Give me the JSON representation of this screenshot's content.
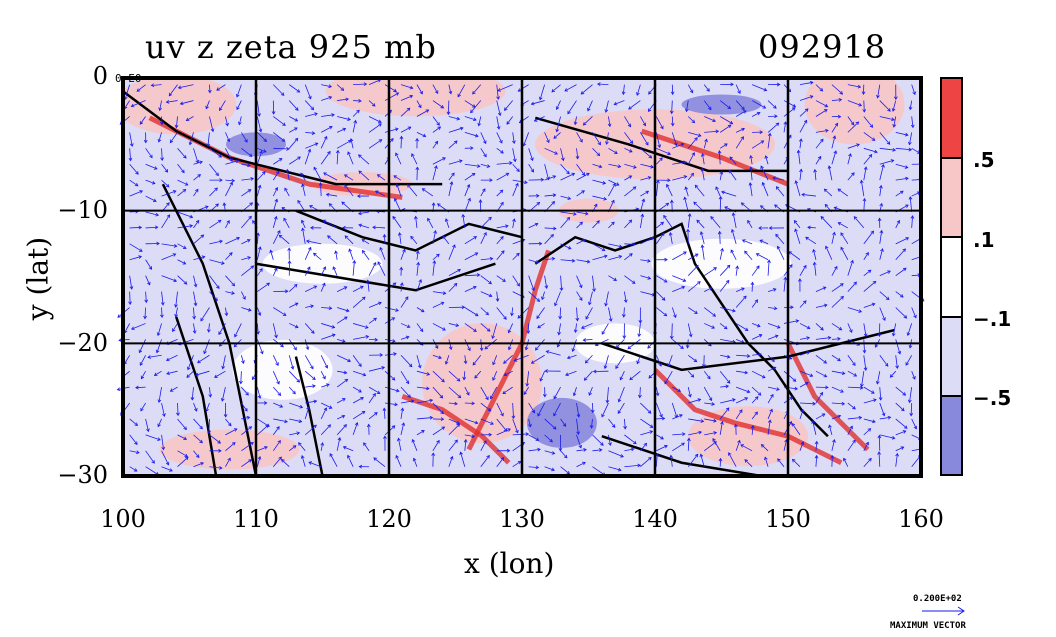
{
  "plot": {
    "title_left": "uv z zeta 925 mb",
    "title_right": "092918",
    "xlabel": "x (lon)",
    "ylabel": "y (lat)",
    "corner_label": "0 E0",
    "xlim": [
      100,
      160
    ],
    "ylim": [
      -30,
      0
    ],
    "xticks": [
      "100",
      "110",
      "120",
      "130",
      "140",
      "150",
      "160"
    ],
    "yticks": [
      "0",
      "−10",
      "−20",
      "−30"
    ],
    "grid": true
  },
  "colorbar": {
    "ticks": [
      ".5",
      ".1",
      "−.1",
      "−.5"
    ],
    "colors": [
      "#ee4444",
      "#f7c6c6",
      "#ffffff",
      "#dcdcf6",
      "#8888dd"
    ]
  },
  "vector_key": {
    "magnitude": "0.200E+02",
    "label": "MAXIMUM VECTOR",
    "color": "#1a1aee"
  },
  "colors": {
    "positive_strong": "#e03030",
    "positive_weak": "#f7c6c6",
    "negative_weak": "#dcdcf6",
    "negative_strong": "#8888dd",
    "vectors": "#1a1aee",
    "height_contours": "#000000"
  }
}
